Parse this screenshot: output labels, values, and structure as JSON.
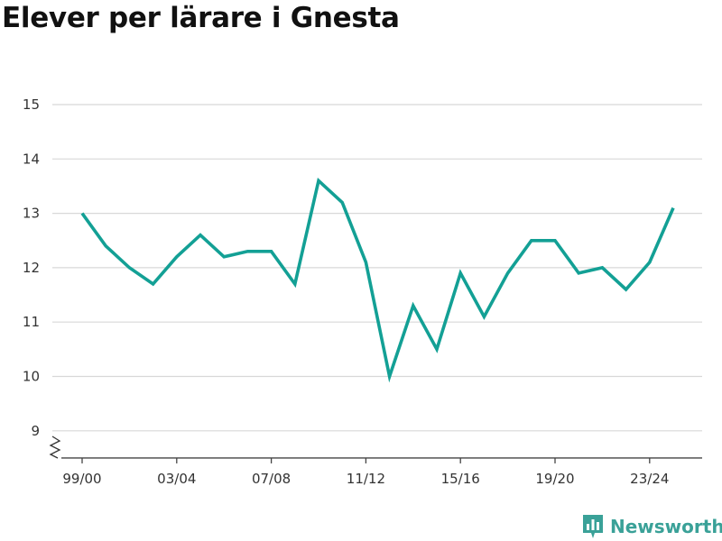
{
  "title": "Elever per lärare i Gnesta",
  "brand": {
    "name": "Newsworthy",
    "icon": "newsworthy-logo-icon",
    "color": "#3aa198"
  },
  "chart_data": {
    "type": "line",
    "title": "Elever per lärare i Gnesta",
    "xlabel": "",
    "ylabel": "",
    "categories": [
      "99/00",
      "00/01",
      "01/02",
      "02/03",
      "03/04",
      "04/05",
      "05/06",
      "06/07",
      "07/08",
      "08/09",
      "09/10",
      "10/11",
      "11/12",
      "12/13",
      "13/14",
      "14/15",
      "15/16",
      "16/17",
      "17/18",
      "18/19",
      "19/20",
      "20/21",
      "21/22",
      "22/23",
      "23/24",
      "24/25"
    ],
    "xticks": [
      "99/00",
      "03/04",
      "07/08",
      "11/12",
      "15/16",
      "19/20",
      "23/24"
    ],
    "yticks": [
      9,
      10,
      11,
      12,
      13,
      14,
      15
    ],
    "ylim": [
      8.5,
      15
    ],
    "axis_break": true,
    "grid": true,
    "line_color": "#13a095",
    "series": [
      {
        "values": [
          13.0,
          12.4,
          12.0,
          11.7,
          12.2,
          12.6,
          12.2,
          12.3,
          12.3,
          11.7,
          13.6,
          13.2,
          12.1,
          10.0,
          11.3,
          10.5,
          11.9,
          11.1,
          11.9,
          12.5,
          12.5,
          11.9,
          12.0,
          11.6,
          12.1,
          13.1
        ]
      }
    ]
  }
}
